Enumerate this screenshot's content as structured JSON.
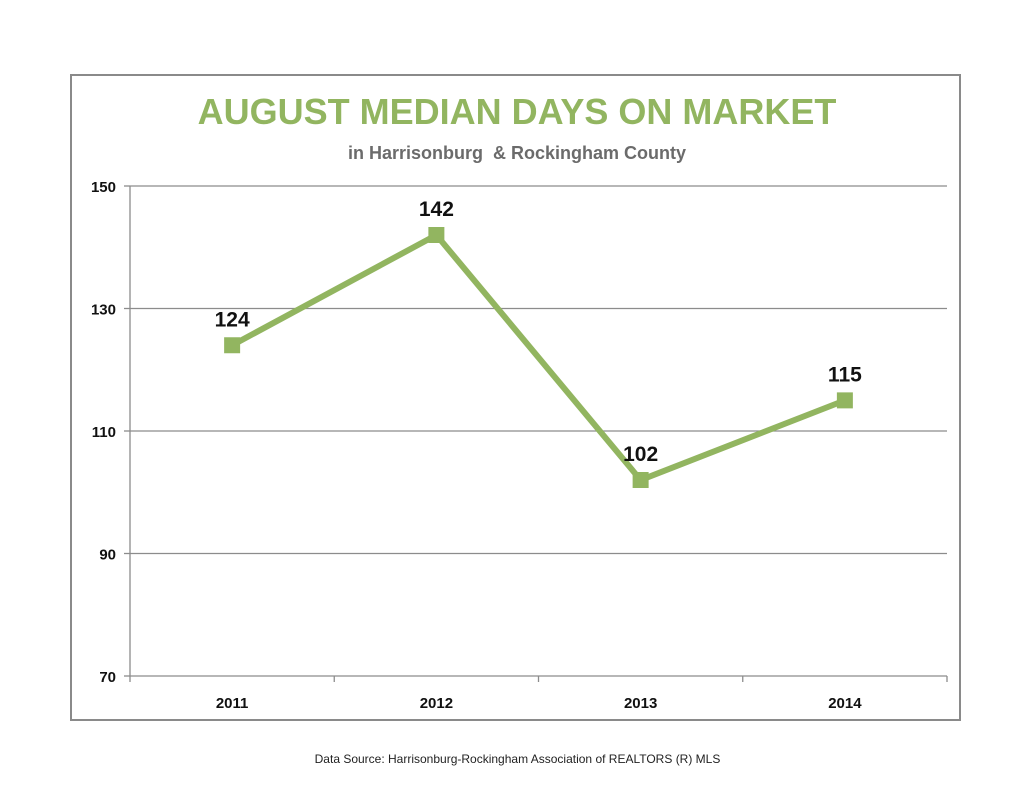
{
  "colors": {
    "accent": "#92b560",
    "grid": "#8c8c8c",
    "frame": "#8a8a8a",
    "text": "#111111",
    "subtitle": "#6b6b6b"
  },
  "chart_data": {
    "type": "line",
    "title": "AUGUST MEDIAN DAYS ON MARKET",
    "subtitle": "in Harrisonburg  & Rockingham County",
    "categories": [
      "2011",
      "2012",
      "2013",
      "2014"
    ],
    "series": [
      {
        "values": [
          124,
          142,
          102,
          115
        ]
      }
    ],
    "data_labels": [
      "124",
      "142",
      "102",
      "115"
    ],
    "ylim": [
      70,
      150
    ],
    "yticks": [
      "70",
      "90",
      "110",
      "130",
      "150"
    ],
    "xlabel": "",
    "ylabel": "",
    "grid": true,
    "legend": "none",
    "marker": "square"
  },
  "footer": {
    "source": "Data Source: Harrisonburg-Rockingham Association of REALTORS (R) MLS"
  }
}
